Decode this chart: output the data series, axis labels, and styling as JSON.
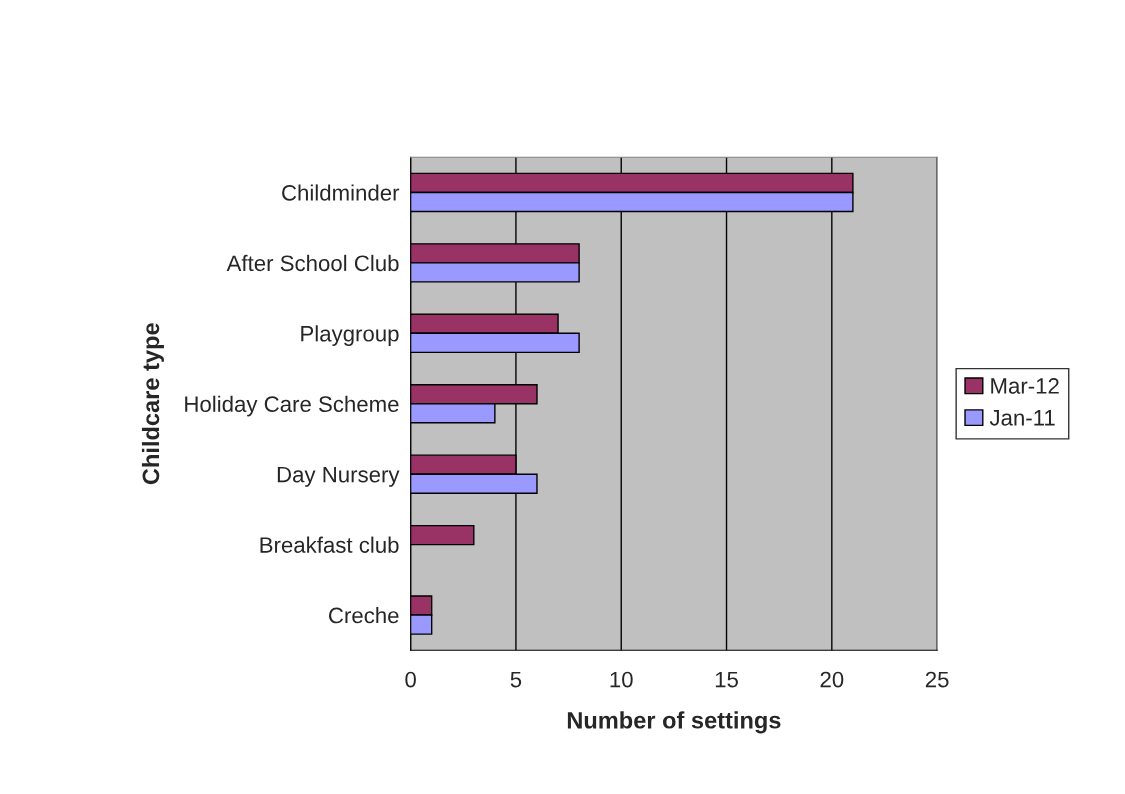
{
  "chart_data": {
    "type": "bar",
    "orientation": "horizontal",
    "xlabel": "Number of settings",
    "ylabel": "Childcare type",
    "categories": [
      "Childminder",
      "After School Club",
      "Playgroup",
      "Holiday Care Scheme",
      "Day Nursery",
      "Breakfast club",
      "Creche"
    ],
    "series": [
      {
        "name": "Mar-12",
        "color": "#993366",
        "values": [
          21,
          8,
          7,
          6,
          5,
          3,
          1
        ]
      },
      {
        "name": "Jan-11",
        "color": "#9999ff",
        "values": [
          21,
          8,
          8,
          4,
          6,
          null,
          1
        ]
      }
    ],
    "xlim": [
      0,
      25
    ],
    "xticks": [
      0,
      5,
      10,
      15,
      20,
      25
    ],
    "grid": "x",
    "legend": "right"
  }
}
